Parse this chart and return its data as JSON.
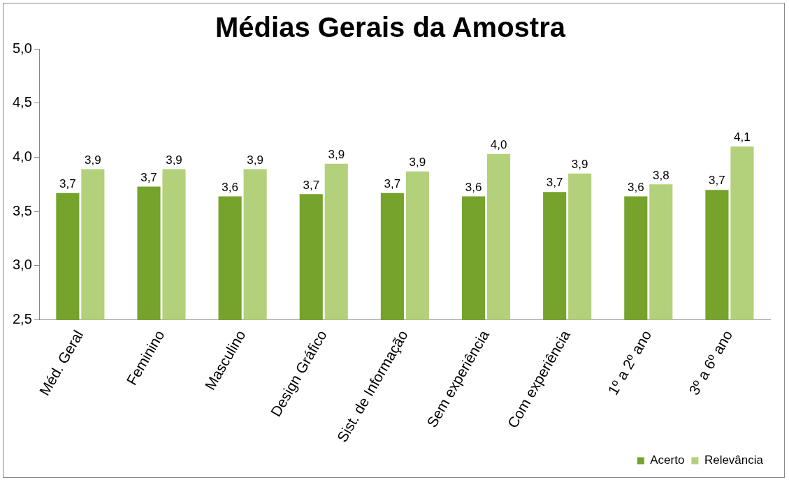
{
  "chart_data": {
    "type": "bar",
    "title": "Médias Gerais da Amostra",
    "categories": [
      "Méd. Geral",
      "Feminino",
      "Masculino",
      "Design Gráfico",
      "Sist. de Informação",
      "Sem experiência",
      "Com experiência",
      "1º a 2º ano",
      "3º a 6º ano"
    ],
    "series": [
      {
        "name": "Acerto",
        "color": "#76a32c",
        "values": [
          3.67,
          3.73,
          3.64,
          3.66,
          3.67,
          3.64,
          3.68,
          3.64,
          3.7
        ],
        "value_labels": [
          "3,7",
          "3,7",
          "3,6",
          "3,7",
          "3,7",
          "3,6",
          "3,7",
          "3,6",
          "3,7"
        ]
      },
      {
        "name": "Relevância",
        "color": "#b3d17a",
        "values": [
          3.89,
          3.89,
          3.89,
          3.94,
          3.87,
          4.03,
          3.85,
          3.75,
          4.1
        ],
        "value_labels": [
          "3,9",
          "3,9",
          "3,9",
          "3,9",
          "3,9",
          "4,0",
          "3,9",
          "3,8",
          "4,1"
        ]
      }
    ],
    "ylim": [
      2.5,
      5
    ],
    "yticks": [
      {
        "value": 2.5,
        "label": "2,5"
      },
      {
        "value": 3,
        "label": "3,0"
      },
      {
        "value": 3.5,
        "label": "3,5"
      },
      {
        "value": 4,
        "label": "4,0"
      },
      {
        "value": 4.5,
        "label": "4,5"
      },
      {
        "value": 5,
        "label": "5,0"
      }
    ],
    "grid": false,
    "legend": "bottom right"
  }
}
